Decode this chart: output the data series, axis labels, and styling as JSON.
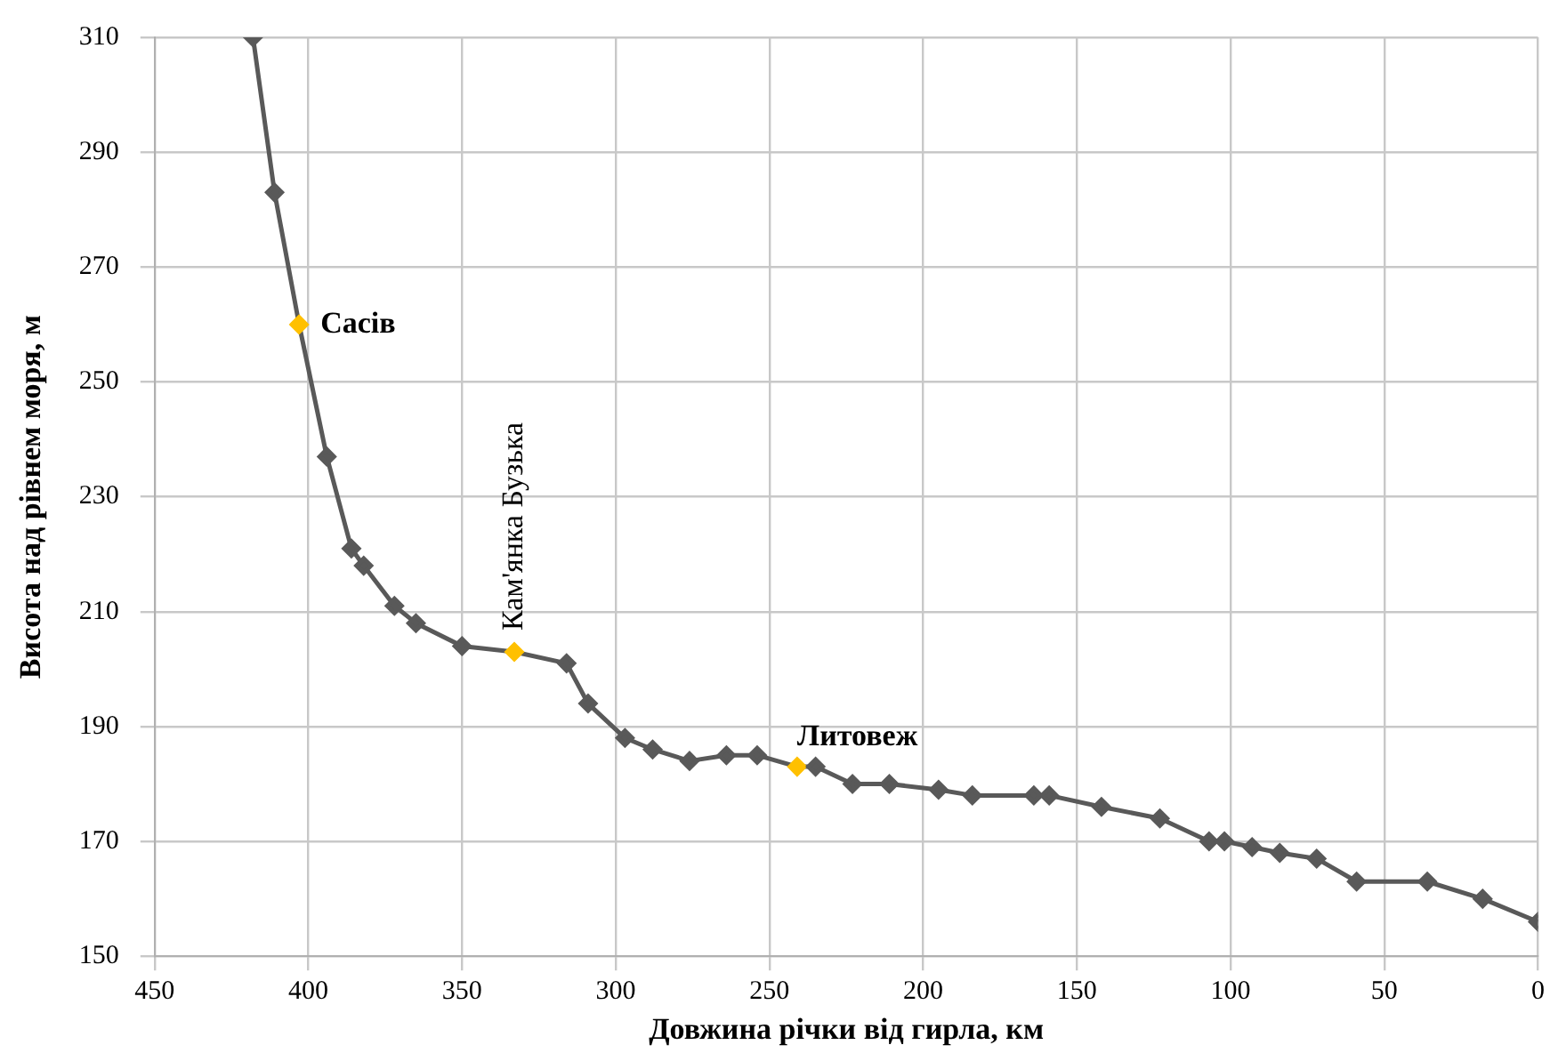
{
  "chart_data": {
    "type": "line",
    "xlabel": "Довжина річки від гирла, км",
    "ylabel": "Висота над рівнем моря, м",
    "x": [
      418,
      411,
      403,
      394,
      386,
      382,
      372,
      365,
      350,
      333,
      316,
      309,
      297,
      288,
      276,
      264,
      254,
      241,
      235,
      223,
      211,
      195,
      184,
      164,
      159,
      142,
      123,
      107,
      102,
      93,
      84,
      72,
      59,
      36,
      18,
      0
    ],
    "series": [
      {
        "color": "#595959",
        "values": [
          310,
          283,
          260,
          237,
          221,
          218,
          211,
          208,
          204,
          203,
          201,
          194,
          188,
          186,
          184,
          185,
          185,
          183,
          183,
          180,
          180,
          179,
          178,
          178,
          178,
          176,
          174,
          170,
          170,
          169,
          168,
          167,
          163,
          163,
          160,
          156
        ],
        "colors": [
          "#595959",
          "#595959",
          "#ffc000",
          "#595959",
          "#595959",
          "#595959",
          "#595959",
          "#595959",
          "#595959",
          "#ffc000",
          "#595959",
          "#595959",
          "#595959",
          "#595959",
          "#595959",
          "#595959",
          "#595959",
          "#ffc000",
          "#595959",
          "#595959",
          "#595959",
          "#595959",
          "#595959",
          "#595959",
          "#595959",
          "#595959",
          "#595959",
          "#595959",
          "#595959",
          "#595959",
          "#595959",
          "#595959",
          "#595959",
          "#595959",
          "#595959",
          "#595959"
        ]
      }
    ],
    "xlim": [
      450,
      0
    ],
    "xticks": [
      450,
      400,
      350,
      300,
      250,
      200,
      150,
      100,
      50,
      0
    ],
    "ylim": [
      150,
      310
    ],
    "yticks": [
      150,
      170,
      190,
      210,
      230,
      250,
      270,
      290,
      310
    ],
    "annotations": [
      {
        "text": "Сасів",
        "x": 403,
        "y": 260
      },
      {
        "text": "Кам'янка Бузька",
        "x": 333,
        "y": 203
      },
      {
        "text": "Литовеж",
        "x": 241,
        "y": 183
      }
    ],
    "grid": true,
    "legend": false,
    "marker": "diamond",
    "line_style": "solid"
  }
}
